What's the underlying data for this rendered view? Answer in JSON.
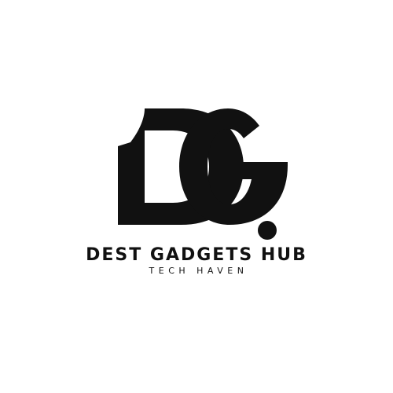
{
  "logo": {
    "monogram": "DG.",
    "brand_name": "DEST GADGETS HUB",
    "tagline": "TECH HAVEN",
    "icon": "dg-monogram-logo",
    "colors": {
      "ink": "#111111",
      "background": "#ffffff"
    }
  }
}
